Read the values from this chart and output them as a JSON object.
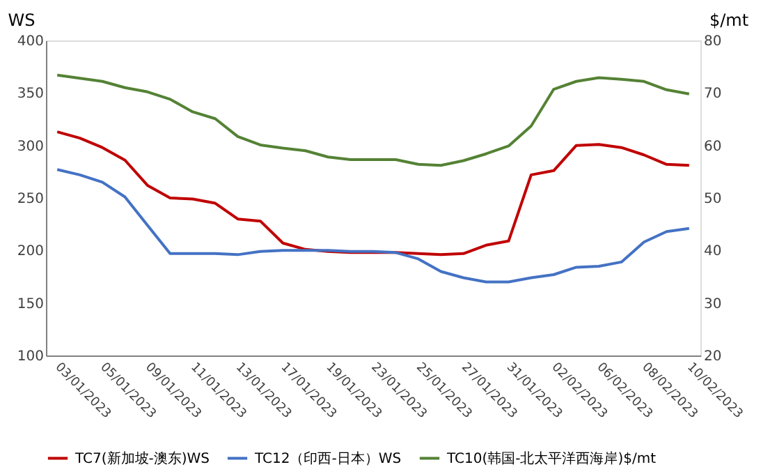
{
  "chart_data": {
    "type": "line",
    "ylabel": "WS",
    "y2label": "$/mt",
    "categories": [
      "03/01/2023",
      null,
      "05/01/2023",
      null,
      "09/01/2023",
      null,
      "11/01/2023",
      null,
      "13/01/2023",
      null,
      "17/01/2023",
      null,
      "19/01/2023",
      null,
      "23/01/2023",
      null,
      "25/01/2023",
      null,
      "27/01/2023",
      null,
      "31/01/2023",
      null,
      "02/02/2023",
      null,
      "06/02/2023",
      null,
      "08/02/2023",
      null,
      "10/02/2023"
    ],
    "series": [
      {
        "name": "TC7(新加坡-澳东)WS",
        "color": "#c00000",
        "values": [
          313,
          307,
          298,
          286,
          262,
          250,
          249,
          245,
          230,
          228,
          207,
          201,
          199,
          198,
          198,
          198,
          197,
          196,
          197,
          205,
          209,
          272,
          276,
          300,
          301,
          298,
          291,
          282,
          281
        ]
      },
      {
        "name": "TC12（印西-日本）WS",
        "color": "#4472c4",
        "values": [
          277,
          272,
          265,
          251,
          224,
          197,
          197,
          197,
          196,
          199,
          200,
          200,
          200,
          199,
          199,
          198,
          192,
          180,
          174,
          170,
          170,
          174,
          177,
          184,
          185,
          189,
          208,
          218,
          221
        ]
      },
      {
        "name": "TC10(韩国-北太平洋西海岸)$/mt",
        "color": "#548235",
        "axis": "y2",
        "values": [
          73.4,
          72.8,
          72.2,
          71.0,
          70.2,
          68.8,
          66.4,
          65.1,
          61.7,
          60.1,
          59.5,
          59.0,
          57.8,
          57.3,
          57.3,
          57.3,
          56.4,
          56.2,
          57.1,
          58.4,
          59.9,
          63.7,
          70.7,
          72.2,
          72.9,
          72.6,
          72.2,
          70.6,
          69.8
        ]
      }
    ],
    "ylim": [
      100,
      400
    ],
    "yticks": [
      100,
      150,
      200,
      250,
      300,
      350,
      400
    ],
    "y2lim": [
      20,
      80
    ],
    "y2ticks": [
      20,
      30,
      40,
      50,
      60,
      70,
      80
    ],
    "grid": false,
    "legend": "bottom"
  }
}
